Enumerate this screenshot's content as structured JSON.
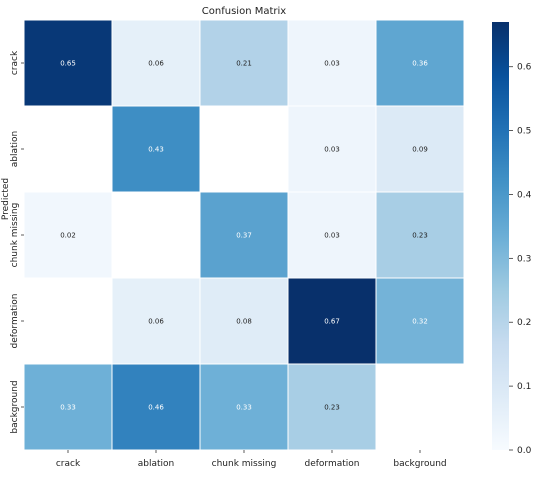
{
  "chart_data": {
    "type": "heatmap",
    "title": "Confusion Matrix",
    "ylabel": "Predicted",
    "xlabel": "",
    "x_categories": [
      "crack",
      "ablation",
      "chunk missing",
      "deformation",
      "background"
    ],
    "y_categories": [
      "crack",
      "ablation",
      "chunk missing",
      "deformation",
      "background"
    ],
    "values": [
      [
        0.65,
        0.06,
        0.21,
        0.03,
        0.36
      ],
      [
        null,
        0.43,
        null,
        0.03,
        0.09
      ],
      [
        0.02,
        null,
        0.37,
        0.03,
        0.23
      ],
      [
        null,
        0.06,
        0.08,
        0.67,
        0.32
      ],
      [
        0.33,
        0.46,
        0.33,
        0.23,
        null
      ]
    ],
    "value_labels": [
      [
        "0.65",
        "0.06",
        "0.21",
        "0.03",
        "0.36"
      ],
      [
        "",
        "0.43",
        "",
        "0.03",
        "0.09"
      ],
      [
        "0.02",
        "",
        "0.37",
        "0.03",
        "0.23"
      ],
      [
        "",
        "0.06",
        "0.08",
        "0.67",
        "0.32"
      ],
      [
        "0.33",
        "0.46",
        "0.33",
        "0.23",
        ""
      ]
    ],
    "colormap": "Blues",
    "colormap_stops": [
      "#f7fbff",
      "#deebf7",
      "#c6dbef",
      "#9ecae1",
      "#6baed6",
      "#4292c6",
      "#2171b5",
      "#08519c",
      "#08306b"
    ],
    "vmin": 0,
    "vmax": 0.67,
    "colorbar_ticks": [
      0.0,
      0.1,
      0.2,
      0.3,
      0.4,
      0.5,
      0.6
    ],
    "colorbar_tick_labels": [
      "0.0",
      "0.1",
      "0.2",
      "0.3",
      "0.4",
      "0.5",
      "0.6"
    ],
    "grid": true,
    "grid_color": "#ffffff"
  }
}
